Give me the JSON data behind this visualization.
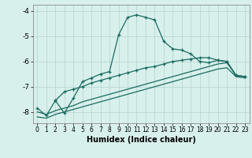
{
  "title": "",
  "xlabel": "Humidex (Indice chaleur)",
  "bg_color": "#d8f0ec",
  "grid_color": "#b8d8d4",
  "line_color": "#1a6b60",
  "x_ticks": [
    0,
    1,
    2,
    3,
    4,
    5,
    6,
    7,
    8,
    9,
    10,
    11,
    12,
    13,
    14,
    15,
    16,
    17,
    18,
    19,
    20,
    21,
    22,
    23
  ],
  "y_ticks": [
    -8,
    -7,
    -6,
    -5,
    -4
  ],
  "ylim": [
    -8.45,
    -3.75
  ],
  "xlim": [
    -0.5,
    23.5
  ],
  "line1_x": [
    0,
    1,
    2,
    3,
    4,
    5,
    6,
    7,
    8,
    9,
    10,
    11,
    12,
    13,
    14,
    15,
    16,
    17,
    18,
    19,
    20,
    21,
    22,
    23
  ],
  "line1_y": [
    -7.85,
    -8.15,
    -7.55,
    -8.05,
    -7.45,
    -6.8,
    -6.65,
    -6.5,
    -6.4,
    -4.95,
    -4.25,
    -4.15,
    -4.25,
    -4.35,
    -5.2,
    -5.5,
    -5.55,
    -5.7,
    -6.0,
    -6.05,
    -5.95,
    -6.0,
    -6.55,
    -6.6
  ],
  "line2_x": [
    2,
    3,
    4,
    5,
    6,
    7,
    8,
    9,
    10,
    11,
    12,
    13,
    14,
    15,
    16,
    17,
    18,
    19,
    20,
    21,
    22,
    23
  ],
  "line2_y": [
    -7.55,
    -7.2,
    -7.1,
    -7.0,
    -6.85,
    -6.75,
    -6.65,
    -6.55,
    -6.45,
    -6.35,
    -6.25,
    -6.2,
    -6.1,
    -6.0,
    -5.95,
    -5.9,
    -5.85,
    -5.85,
    -5.95,
    -6.0,
    -6.55,
    -6.6
  ],
  "line3_x": [
    0,
    1,
    2,
    3,
    4,
    5,
    6,
    7,
    8,
    9,
    10,
    11,
    12,
    13,
    14,
    15,
    16,
    17,
    18,
    19,
    20,
    21,
    22,
    23
  ],
  "line3_y": [
    -8.0,
    -8.1,
    -7.95,
    -7.85,
    -7.75,
    -7.6,
    -7.5,
    -7.4,
    -7.3,
    -7.2,
    -7.1,
    -7.0,
    -6.9,
    -6.8,
    -6.7,
    -6.6,
    -6.5,
    -6.4,
    -6.3,
    -6.2,
    -6.1,
    -6.05,
    -6.55,
    -6.6
  ],
  "line4_x": [
    0,
    1,
    2,
    3,
    4,
    5,
    6,
    7,
    8,
    9,
    10,
    11,
    12,
    13,
    14,
    15,
    16,
    17,
    18,
    19,
    20,
    21,
    22,
    23
  ],
  "line4_y": [
    -8.2,
    -8.25,
    -8.1,
    -8.0,
    -7.9,
    -7.8,
    -7.7,
    -7.6,
    -7.5,
    -7.4,
    -7.3,
    -7.2,
    -7.1,
    -7.0,
    -6.9,
    -6.8,
    -6.7,
    -6.6,
    -6.5,
    -6.4,
    -6.3,
    -6.25,
    -6.6,
    -6.65
  ]
}
